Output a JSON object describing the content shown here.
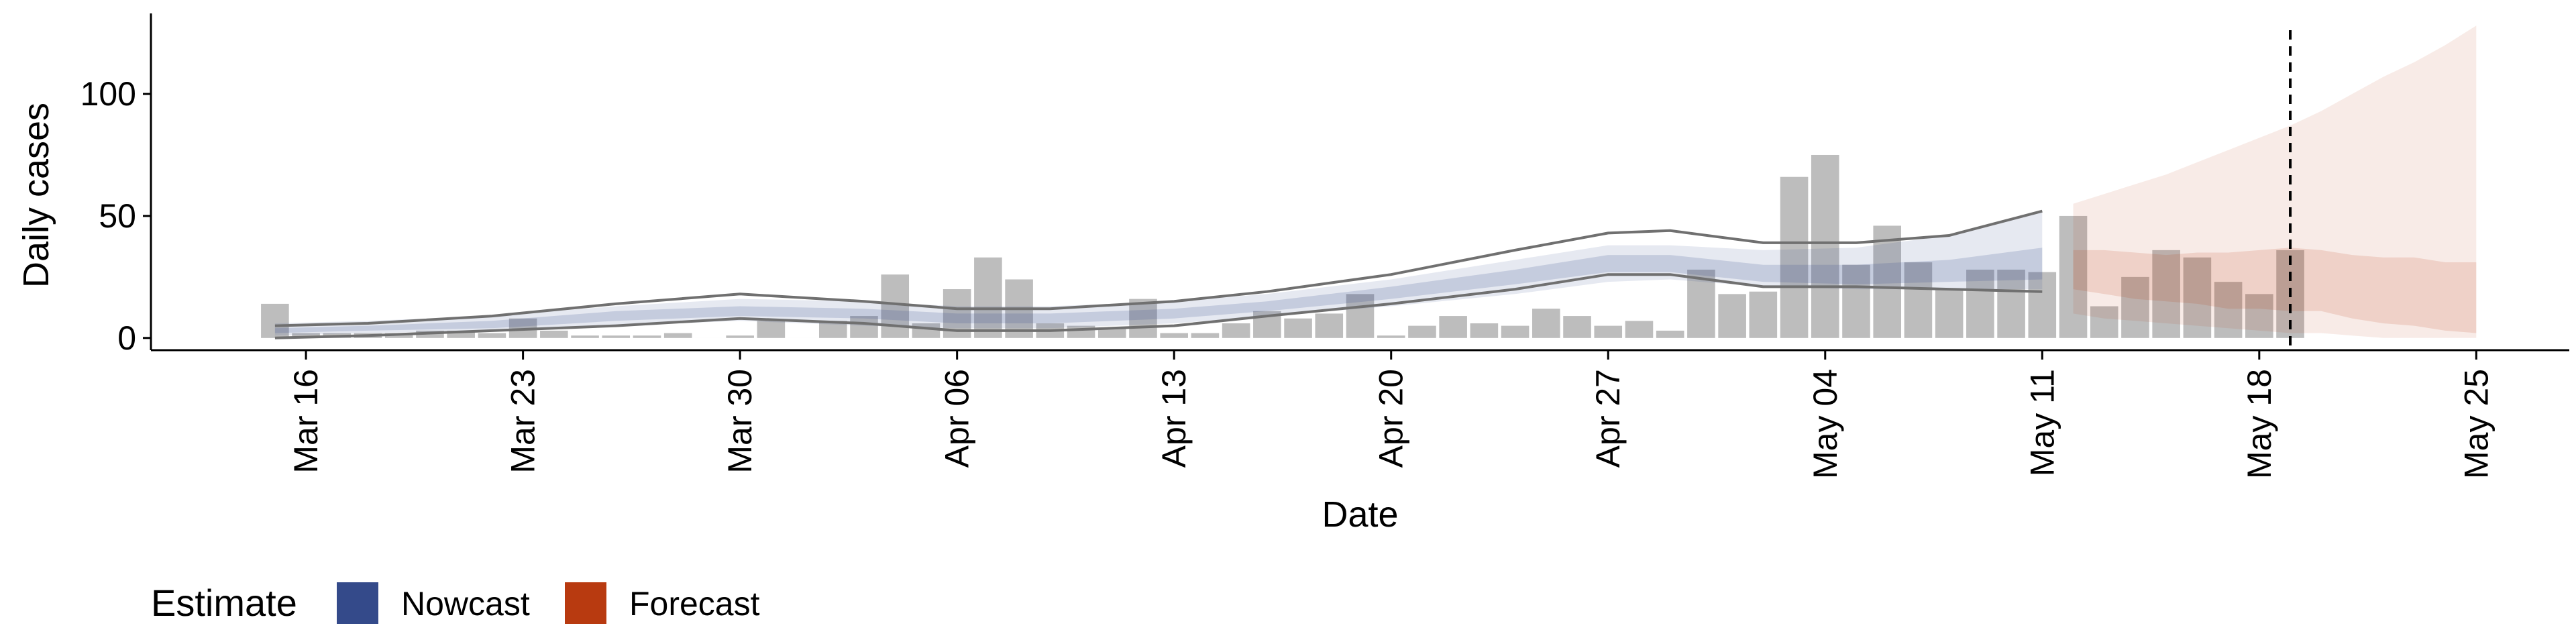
{
  "chart_data": {
    "type": "bar",
    "xlabel": "Date",
    "ylabel": "Daily cases",
    "ylim": [
      -5,
      133
    ],
    "y_ticks": [
      0,
      50,
      100
    ],
    "x_ticks": [
      "Mar 16",
      "Mar 23",
      "Mar 30",
      "Apr 06",
      "Apr 13",
      "Apr 20",
      "Apr 27",
      "May 04",
      "May 11",
      "May 18",
      "May 25"
    ],
    "x_ticks_dates": [
      "2020-03-16",
      "2020-03-23",
      "2020-03-30",
      "2020-04-06",
      "2020-04-13",
      "2020-04-20",
      "2020-04-27",
      "2020-05-04",
      "2020-05-11",
      "2020-05-18",
      "2020-05-25"
    ],
    "x_range": [
      "2020-03-11",
      "2020-05-28"
    ],
    "cutoff_date": "2020-05-19",
    "grid": false,
    "legend_position": "bottom-left",
    "colors": {
      "bars": "#bdbdbd",
      "nowcast": "#344a8a",
      "forecast": "#b83a10",
      "reported_line": "#707070",
      "cutoff_line": "#000000"
    },
    "reported_cases": {
      "dates": [
        "2020-03-15",
        "2020-03-16",
        "2020-03-17",
        "2020-03-18",
        "2020-03-19",
        "2020-03-20",
        "2020-03-21",
        "2020-03-22",
        "2020-03-23",
        "2020-03-24",
        "2020-03-25",
        "2020-03-26",
        "2020-03-27",
        "2020-03-28",
        "2020-03-29",
        "2020-03-30",
        "2020-03-31",
        "2020-04-01",
        "2020-04-02",
        "2020-04-03",
        "2020-04-04",
        "2020-04-05",
        "2020-04-06",
        "2020-04-07",
        "2020-04-08",
        "2020-04-09",
        "2020-04-10",
        "2020-04-11",
        "2020-04-12",
        "2020-04-13",
        "2020-04-14",
        "2020-04-15",
        "2020-04-16",
        "2020-04-17",
        "2020-04-18",
        "2020-04-19",
        "2020-04-20",
        "2020-04-21",
        "2020-04-22",
        "2020-04-23",
        "2020-04-24",
        "2020-04-25",
        "2020-04-26",
        "2020-04-27",
        "2020-04-28",
        "2020-04-29",
        "2020-04-30",
        "2020-05-01",
        "2020-05-02",
        "2020-05-03",
        "2020-05-04",
        "2020-05-05",
        "2020-05-06",
        "2020-05-07",
        "2020-05-08",
        "2020-05-09",
        "2020-05-10",
        "2020-05-11",
        "2020-05-12",
        "2020-05-13",
        "2020-05-14",
        "2020-05-15",
        "2020-05-16",
        "2020-05-17",
        "2020-05-18",
        "2020-05-19"
      ],
      "values": [
        14,
        2,
        2,
        2,
        2,
        3,
        3,
        2,
        8,
        3,
        1,
        1,
        1,
        2,
        0,
        1,
        7,
        0,
        7,
        9,
        26,
        6,
        20,
        33,
        24,
        6,
        5,
        4,
        16,
        2,
        2,
        6,
        11,
        8,
        10,
        18,
        1,
        5,
        9,
        6,
        5,
        12,
        9,
        5,
        7,
        3,
        28,
        18,
        19,
        66,
        75,
        30,
        46,
        31,
        20,
        28,
        28,
        27,
        50,
        13,
        25,
        36,
        33,
        23,
        18,
        36
      ]
    },
    "nowcast": {
      "dates": [
        "2020-03-15",
        "2020-03-18",
        "2020-03-22",
        "2020-03-26",
        "2020-03-30",
        "2020-04-03",
        "2020-04-06",
        "2020-04-09",
        "2020-04-13",
        "2020-04-16",
        "2020-04-20",
        "2020-04-24",
        "2020-04-27",
        "2020-04-29",
        "2020-05-02",
        "2020-05-05",
        "2020-05-08",
        "2020-05-11"
      ],
      "median": [
        3,
        4,
        5,
        9,
        11,
        10,
        8,
        8,
        10,
        13,
        18,
        25,
        30,
        30,
        26,
        25,
        27,
        29
      ],
      "lower_50": [
        2,
        3,
        4,
        7,
        9,
        8,
        6,
        6,
        8,
        11,
        16,
        22,
        27,
        27,
        23,
        22,
        23,
        24
      ],
      "upper_50": [
        4,
        5,
        7,
        11,
        13,
        12,
        10,
        10,
        12,
        15,
        21,
        28,
        34,
        34,
        30,
        30,
        32,
        37
      ],
      "lower_90": [
        1,
        2,
        3,
        5,
        7,
        5,
        4,
        4,
        6,
        9,
        13,
        18,
        23,
        24,
        21,
        20,
        20,
        20
      ],
      "upper_90": [
        6,
        7,
        9,
        13,
        16,
        15,
        13,
        13,
        15,
        18,
        24,
        32,
        38,
        38,
        36,
        37,
        42,
        52
      ]
    },
    "forecast": {
      "dates": [
        "2020-05-12",
        "2020-05-13",
        "2020-05-14",
        "2020-05-15",
        "2020-05-16",
        "2020-05-17",
        "2020-05-18",
        "2020-05-19",
        "2020-05-20",
        "2020-05-21",
        "2020-05-22",
        "2020-05-23",
        "2020-05-24",
        "2020-05-25"
      ],
      "lower_50": [
        20,
        18,
        16,
        15,
        14,
        12,
        12,
        11,
        11,
        8,
        6,
        5,
        3,
        2
      ],
      "upper_50": [
        36,
        36,
        35,
        34,
        35,
        35,
        36,
        37,
        36,
        34,
        33,
        33,
        31,
        31
      ],
      "lower_90": [
        10,
        8,
        7,
        6,
        5,
        4,
        3,
        2,
        2,
        1,
        0,
        0,
        0,
        0
      ],
      "upper_90": [
        55,
        59,
        63,
        67,
        72,
        77,
        82,
        87,
        93,
        100,
        107,
        113,
        120,
        128
      ]
    },
    "reported_band": {
      "dates": [
        "2020-03-15",
        "2020-03-18",
        "2020-03-22",
        "2020-03-26",
        "2020-03-30",
        "2020-04-03",
        "2020-04-06",
        "2020-04-09",
        "2020-04-13",
        "2020-04-16",
        "2020-04-20",
        "2020-04-24",
        "2020-04-27",
        "2020-04-29",
        "2020-05-02",
        "2020-05-05",
        "2020-05-08",
        "2020-05-11"
      ],
      "lower": [
        0,
        1,
        3,
        5,
        8,
        6,
        3,
        3,
        5,
        9,
        14,
        20,
        26,
        26,
        21,
        21,
        20,
        19
      ],
      "upper": [
        5,
        6,
        9,
        14,
        18,
        15,
        12,
        12,
        15,
        19,
        26,
        36,
        43,
        44,
        39,
        39,
        42,
        52
      ]
    }
  },
  "legend": {
    "title": "Estimate",
    "items": [
      {
        "label": "Nowcast",
        "color": "#344a8a"
      },
      {
        "label": "Forecast",
        "color": "#b83a10"
      }
    ]
  }
}
